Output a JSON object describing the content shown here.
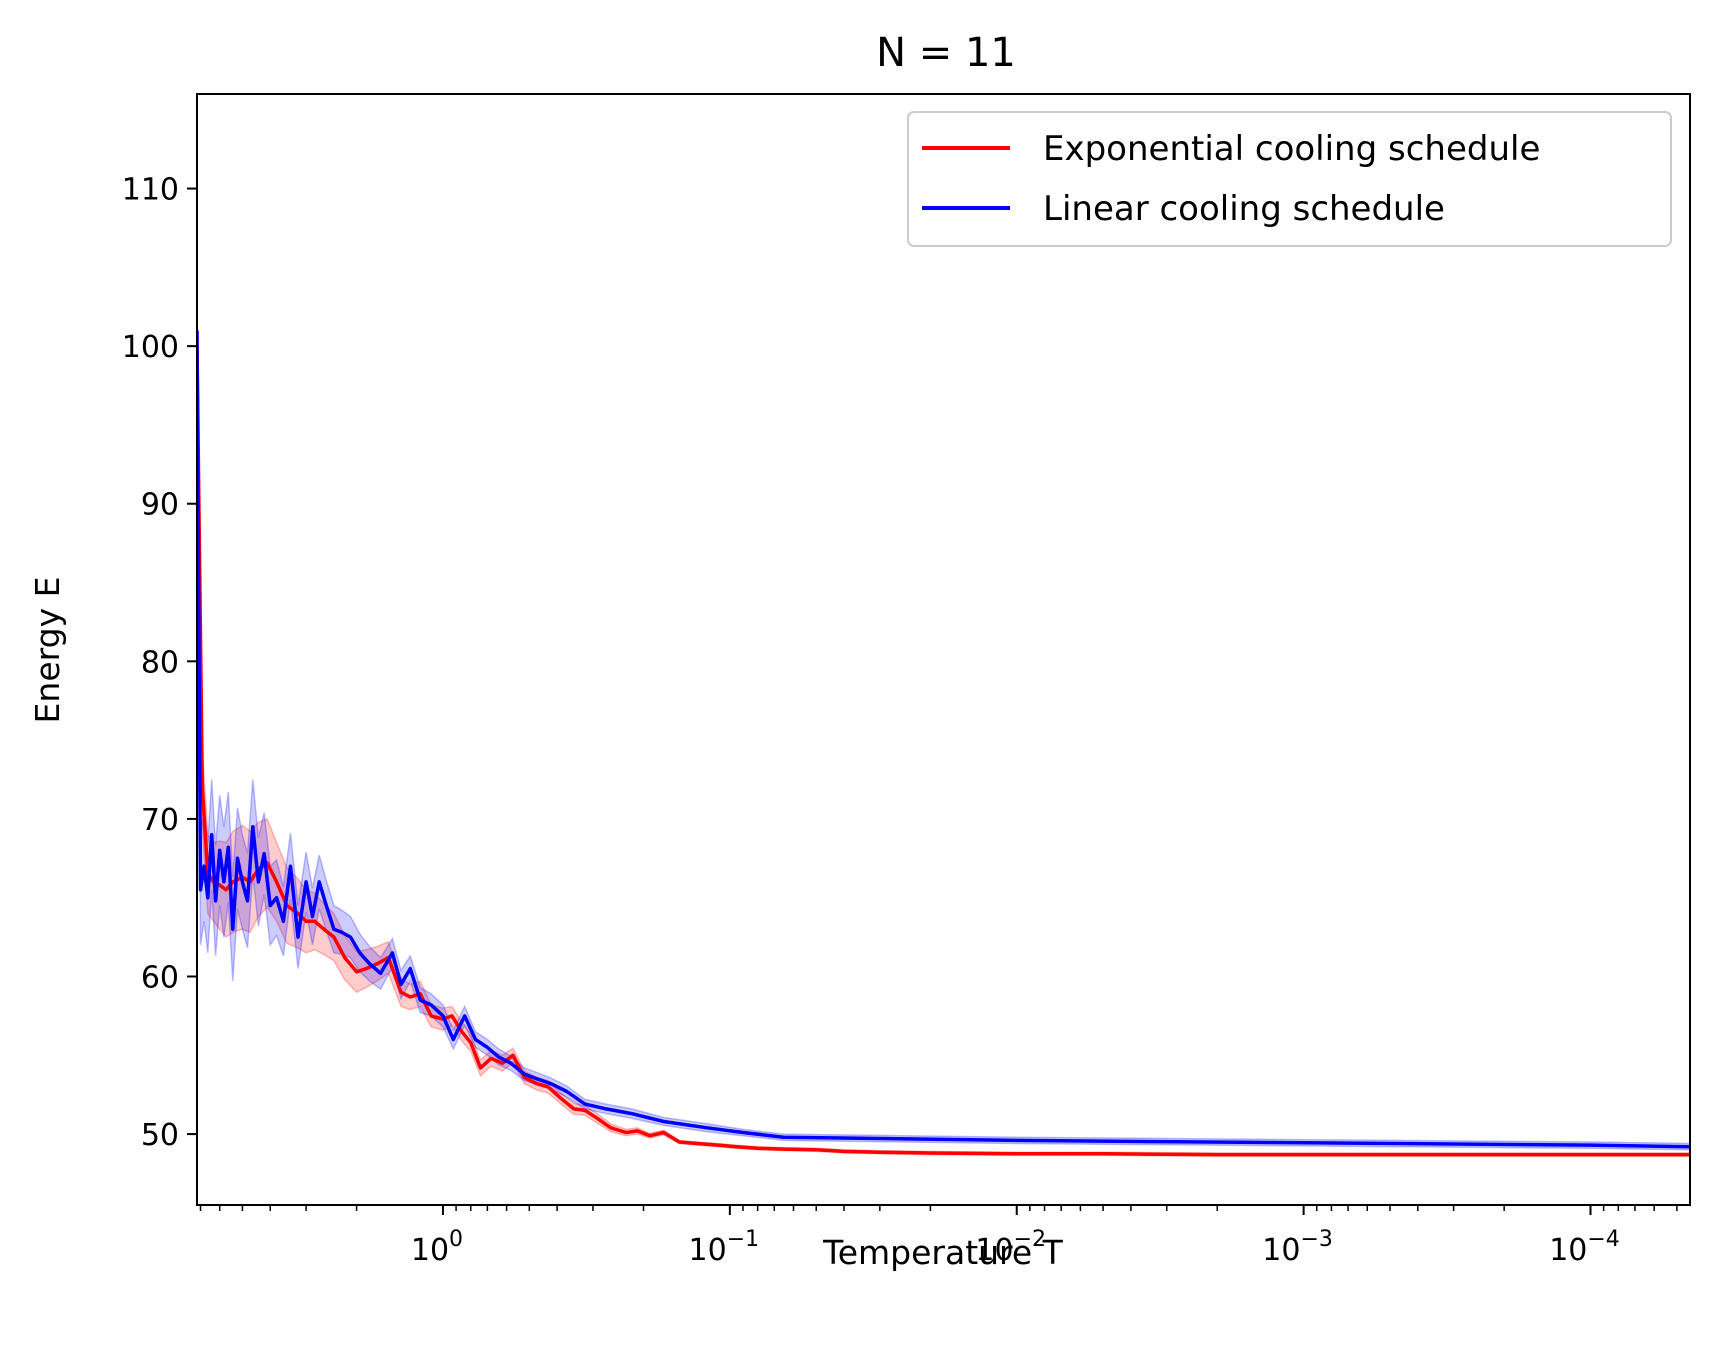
{
  "chart_data": {
    "type": "line",
    "title": "N = 11",
    "xlabel": "Temperature T",
    "ylabel": "Energy E",
    "x_scale": "log",
    "x_direction": "decreasing",
    "xlim": [
      7.2,
      4.5e-05
    ],
    "ylim": [
      45.5,
      116
    ],
    "grid": false,
    "legend_position": "top-right",
    "x_ticks": [
      {
        "value": 1,
        "base": "10",
        "exp": "0"
      },
      {
        "value": 0.1,
        "base": "10",
        "exp": "−1"
      },
      {
        "value": 0.01,
        "base": "10",
        "exp": "−2"
      },
      {
        "value": 0.001,
        "base": "10",
        "exp": "−3"
      },
      {
        "value": 0.0001,
        "base": "10",
        "exp": "−4"
      }
    ],
    "y_ticks": [
      50,
      60,
      70,
      80,
      90,
      100,
      110
    ],
    "series": [
      {
        "name": "Exponential cooling schedule",
        "color": "#ff0000",
        "x": [
          7.2,
          6.9,
          6.6,
          6.3,
          6.0,
          5.7,
          5.4,
          5.0,
          4.7,
          4.4,
          4.1,
          3.8,
          3.5,
          3.2,
          3.0,
          2.8,
          2.6,
          2.4,
          2.2,
          2.0,
          1.85,
          1.7,
          1.55,
          1.4,
          1.3,
          1.2,
          1.1,
          1.0,
          0.93,
          0.86,
          0.8,
          0.74,
          0.68,
          0.62,
          0.57,
          0.52,
          0.47,
          0.43,
          0.39,
          0.35,
          0.32,
          0.29,
          0.26,
          0.23,
          0.21,
          0.19,
          0.17,
          0.15,
          0.13,
          0.12,
          0.11,
          0.095,
          0.08,
          0.065,
          0.05,
          0.04,
          0.03,
          0.02,
          0.01,
          0.005,
          0.002,
          0.001,
          0.0005,
          0.0002,
          0.0001,
          4.5e-05
        ],
        "y": [
          100,
          72,
          66.5,
          66,
          65.8,
          65.5,
          66,
          66.3,
          66,
          66.8,
          67.2,
          66,
          64.5,
          64,
          63.5,
          63.5,
          63,
          62.5,
          61.2,
          60.3,
          60.5,
          60.8,
          61.2,
          59,
          58.7,
          58.9,
          57.5,
          57.3,
          57.5,
          56.5,
          55.8,
          54.2,
          54.8,
          54.5,
          55,
          53.6,
          53.2,
          53,
          52.3,
          51.6,
          51.5,
          51,
          50.4,
          50.1,
          50.2,
          49.9,
          50.1,
          49.5,
          49.4,
          49.35,
          49.3,
          49.2,
          49.1,
          49.05,
          49.0,
          48.9,
          48.85,
          48.8,
          48.75,
          48.75,
          48.7,
          48.7,
          48.7,
          48.7,
          48.7,
          48.7
        ],
        "band_halfwidth": [
          1.5,
          2.5,
          2.5,
          2.5,
          2.8,
          3.0,
          3.2,
          3.3,
          3.2,
          3.0,
          2.8,
          2.5,
          2.4,
          2.2,
          2.0,
          1.8,
          1.6,
          1.5,
          1.4,
          1.3,
          1.2,
          1.1,
          1.0,
          0.9,
          0.8,
          0.8,
          0.7,
          0.7,
          0.6,
          0.6,
          0.55,
          0.5,
          0.5,
          0.5,
          0.45,
          0.4,
          0.4,
          0.4,
          0.35,
          0.35,
          0.3,
          0.3,
          0.25,
          0.2,
          0.2,
          0.15,
          0.15,
          0.1,
          0.1,
          0.1,
          0.1,
          0.1,
          0.1,
          0.1,
          0.1,
          0.1,
          0.1,
          0.1,
          0.1,
          0.1,
          0.1,
          0.1,
          0.1,
          0.1,
          0.1,
          0.1
        ]
      },
      {
        "name": "Linear cooling schedule",
        "color": "#0000ff",
        "x": [
          7.2,
          7.0,
          6.8,
          6.6,
          6.4,
          6.2,
          6.0,
          5.8,
          5.6,
          5.4,
          5.2,
          5.0,
          4.8,
          4.6,
          4.4,
          4.2,
          4.0,
          3.8,
          3.6,
          3.4,
          3.2,
          3.0,
          2.85,
          2.7,
          2.55,
          2.4,
          2.25,
          2.1,
          1.95,
          1.8,
          1.65,
          1.5,
          1.4,
          1.3,
          1.2,
          1.1,
          1.0,
          0.92,
          0.84,
          0.77,
          0.7,
          0.64,
          0.58,
          0.52,
          0.47,
          0.42,
          0.37,
          0.32,
          0.27,
          0.22,
          0.17,
          0.12,
          0.09,
          0.065,
          0.01,
          0.001,
          0.0001,
          4.5e-05
        ],
        "y": [
          101,
          65.5,
          67,
          65,
          69,
          64.8,
          68,
          66,
          68.2,
          63,
          67.5,
          66,
          64.8,
          69.5,
          66,
          67.8,
          64.5,
          65,
          63.5,
          67,
          62.5,
          66,
          63.8,
          66,
          64.5,
          63,
          62.8,
          62.5,
          61.5,
          60.8,
          60.2,
          61.5,
          59.5,
          60.5,
          58.5,
          58.2,
          57.5,
          56,
          57.5,
          56,
          55.5,
          54.9,
          54.5,
          53.8,
          53.5,
          53.2,
          52.7,
          51.9,
          51.6,
          51.3,
          50.8,
          50.4,
          50.1,
          49.8,
          49.6,
          49.45,
          49.3,
          49.2
        ],
        "band_halfwidth": [
          1.5,
          3.5,
          3.5,
          3.5,
          3.5,
          3.5,
          3.5,
          3.5,
          3.5,
          3.3,
          3.2,
          3.0,
          3.0,
          3.0,
          2.8,
          2.6,
          2.5,
          2.4,
          2.2,
          2.1,
          2.0,
          1.9,
          1.8,
          1.7,
          1.6,
          1.5,
          1.4,
          1.3,
          1.2,
          1.1,
          1.0,
          0.9,
          0.9,
          0.8,
          0.8,
          0.7,
          0.7,
          0.6,
          0.6,
          0.5,
          0.5,
          0.5,
          0.45,
          0.4,
          0.4,
          0.35,
          0.35,
          0.3,
          0.3,
          0.3,
          0.25,
          0.25,
          0.2,
          0.2,
          0.2,
          0.2,
          0.2,
          0.2
        ]
      }
    ]
  }
}
